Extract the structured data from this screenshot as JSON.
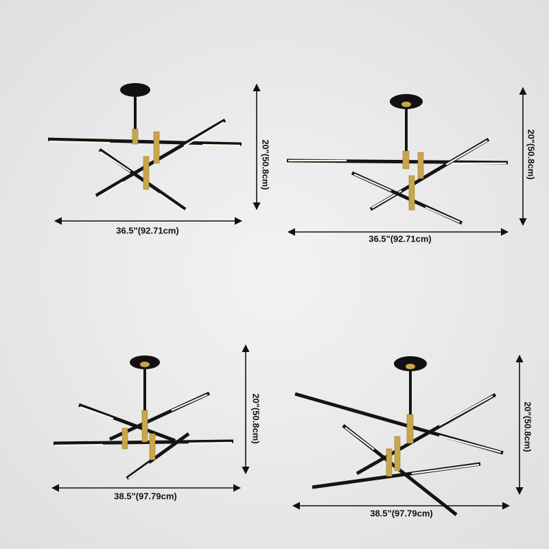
{
  "panels": [
    {
      "width_label": "36.5\"(92.71cm)",
      "height_label": "20\"(50.8cm)"
    },
    {
      "width_label": "36.5\"(92.71cm)",
      "height_label": "20\"(50.8cm)"
    },
    {
      "width_label": "38.5\"(97.79cm)",
      "height_label": "20\"(50.8cm)"
    },
    {
      "width_label": "38.5\"(97.79cm)",
      "height_label": "20\"(50.8cm)"
    }
  ]
}
